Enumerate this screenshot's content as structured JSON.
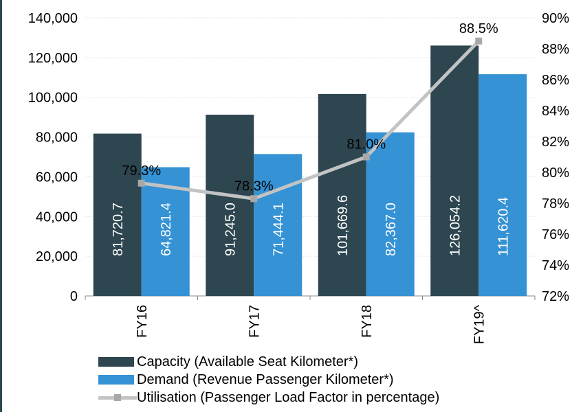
{
  "chart_data": {
    "type": "bar",
    "categories": [
      "FY16",
      "FY17",
      "FY18",
      "FY19^"
    ],
    "series": [
      {
        "name": "Capacity (Available Seat Kilometer*)",
        "type": "bar",
        "axis": "left",
        "color": "#2d4650",
        "values": [
          81720.7,
          91245.0,
          101669.6,
          126054.2
        ],
        "labels": [
          "81,720.7",
          "91,245.0",
          "101,669.6",
          "126,054.2"
        ]
      },
      {
        "name": "Demand (Revenue Passenger Kilometer*)",
        "type": "bar",
        "axis": "left",
        "color": "#3592d4",
        "values": [
          64821.4,
          71444.1,
          82367.0,
          111620.4
        ],
        "labels": [
          "64,821.4",
          "71,444.1",
          "82,367.0",
          "111,620.4"
        ]
      },
      {
        "name": "Utilisation (Passenger Load Factor in percentage)",
        "type": "line",
        "axis": "right",
        "color": "#c3c3c3",
        "values": [
          79.3,
          78.3,
          81.0,
          88.5
        ],
        "labels": [
          "79.3%",
          "78.3%",
          "81.0%",
          "88.5%"
        ]
      }
    ],
    "y_left": {
      "ylim": [
        0,
        140000
      ],
      "ticks": [
        0,
        20000,
        40000,
        60000,
        80000,
        100000,
        120000,
        140000
      ],
      "tick_labels": [
        "0",
        "20,000",
        "40,000",
        "60,000",
        "80,000",
        "100,000",
        "120,000",
        "140,000"
      ]
    },
    "y_right": {
      "ylim": [
        72,
        90
      ],
      "ticks": [
        72,
        74,
        76,
        78,
        80,
        82,
        84,
        86,
        88,
        90
      ],
      "tick_labels": [
        "72%",
        "74%",
        "76%",
        "78%",
        "80%",
        "82%",
        "84%",
        "86%",
        "88%",
        "90%"
      ]
    },
    "grid": true,
    "legend_position": "bottom-left"
  }
}
